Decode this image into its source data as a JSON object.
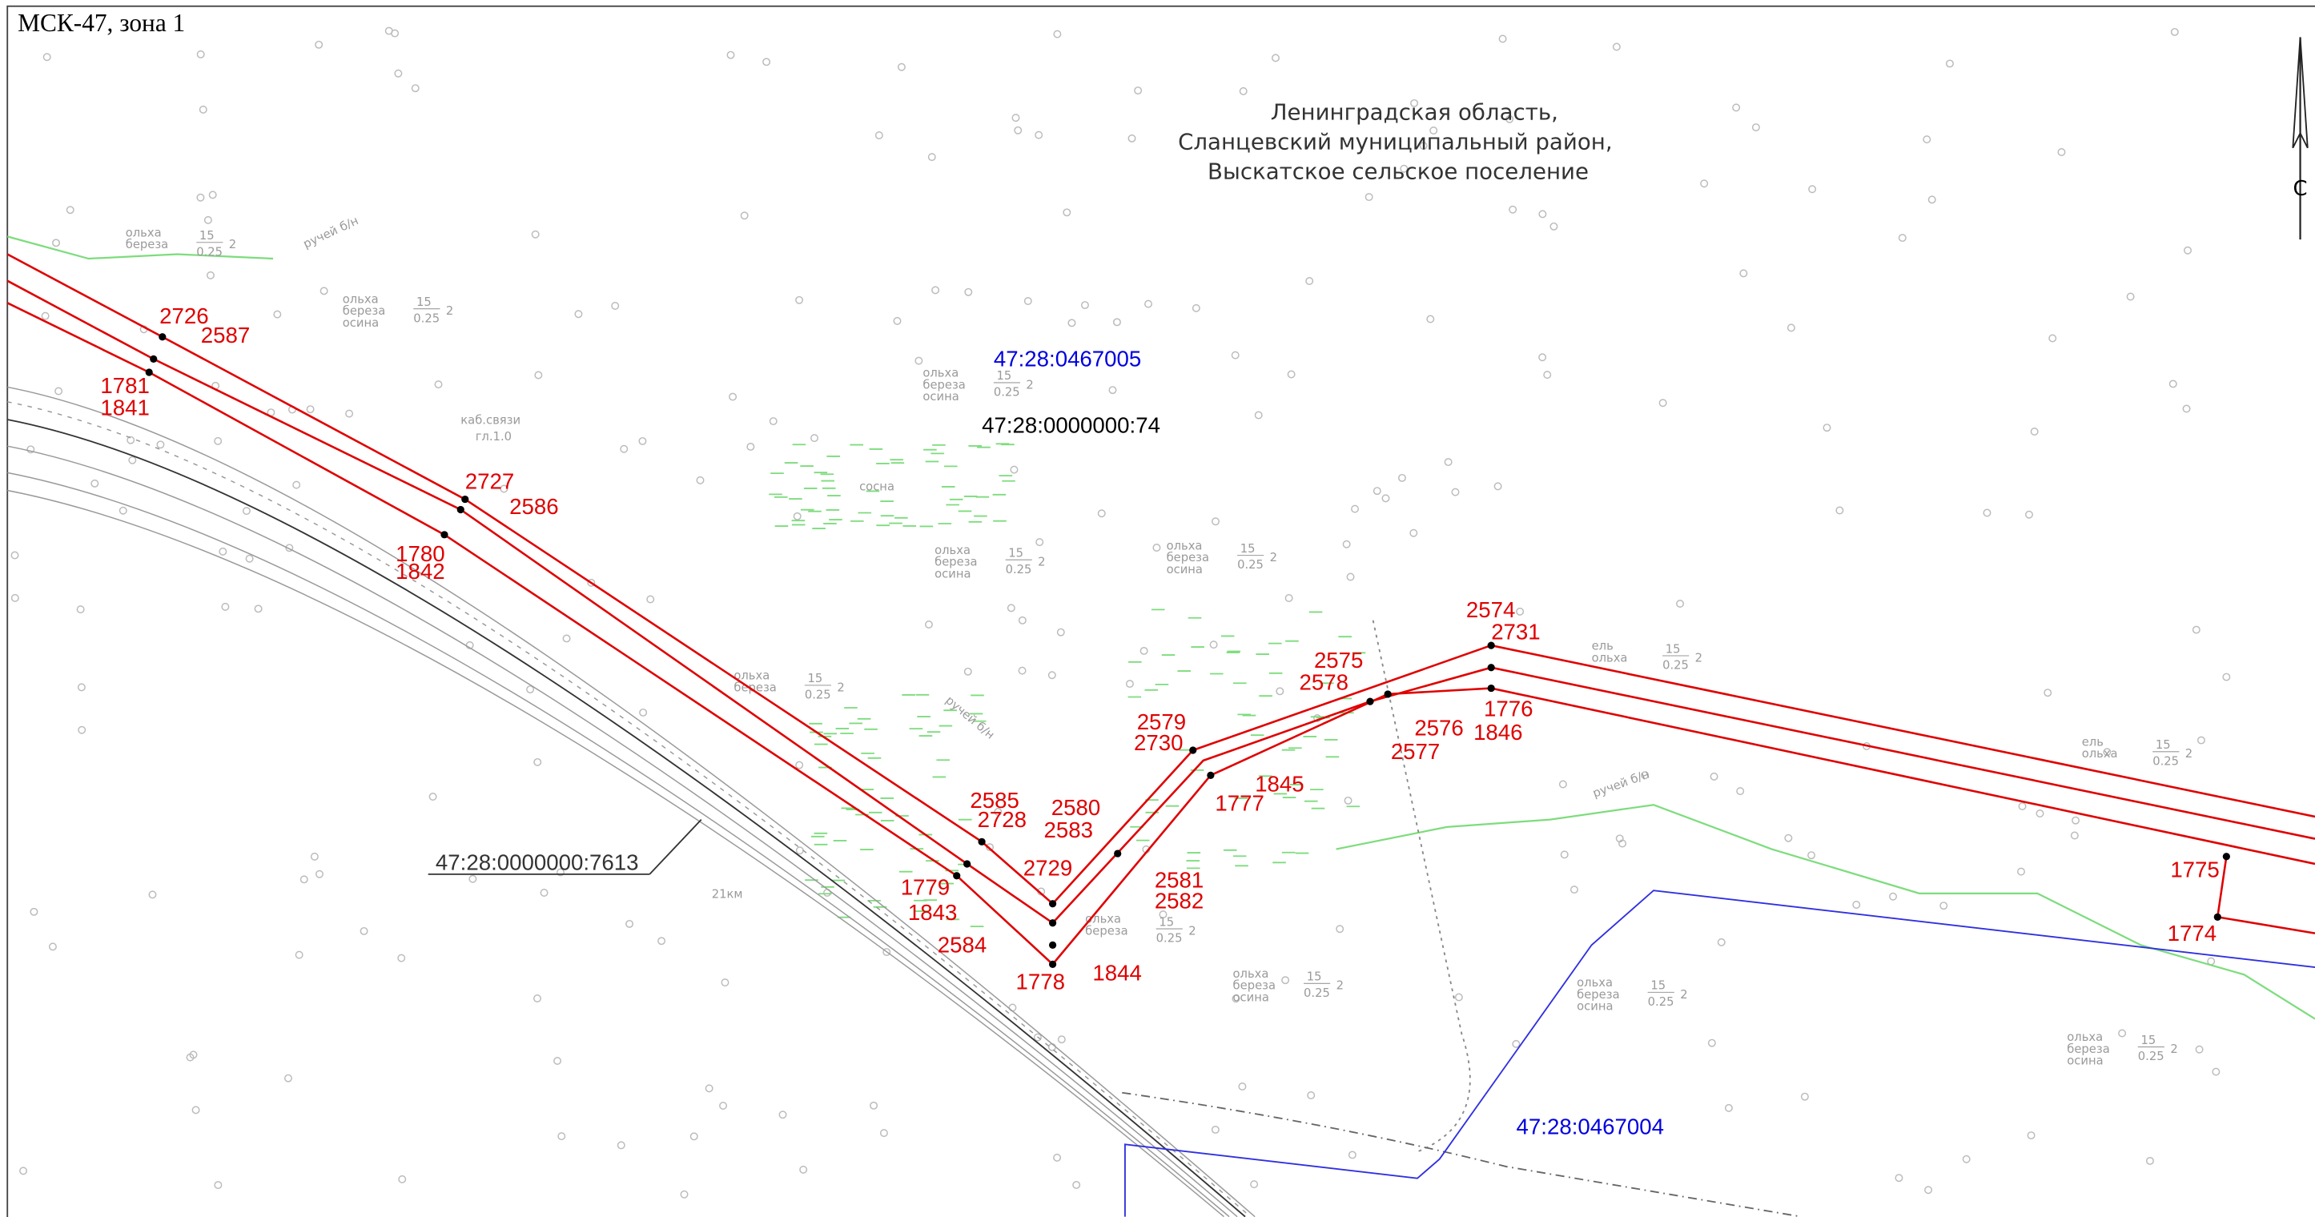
{
  "header": {
    "title": "МСК-47, зона 1"
  },
  "region": {
    "lines": [
      "Ленинградская область,",
      "Сланцевский муниципальный район,",
      "Выскатское сельское поселение"
    ]
  },
  "north": "С",
  "parcels": [
    "47:28:0467005",
    "47:28:0000000:74",
    "47:28:0000000:7613",
    "47:28:0467004"
  ],
  "points": [
    "2726",
    "2587",
    "1781",
    "1841",
    "2727",
    "2586",
    "1780",
    "1842",
    "2585",
    "2728",
    "1779",
    "1843",
    "2729",
    "2580",
    "2583",
    "2581",
    "2582",
    "2584",
    "1778",
    "1844",
    "2579",
    "2730",
    "1845",
    "1777",
    "2575",
    "2578",
    "2576",
    "2577",
    "1776",
    "1846",
    "2574",
    "2731",
    "1775",
    "1774"
  ],
  "small": {
    "alder": "ольха",
    "birch": "береза",
    "aspen": "осина",
    "pine": "сосна",
    "spruce": "ель",
    "h": "15",
    "n": "2",
    "d": "0.25",
    "stream": "ручей б/н",
    "cable": "каб.связи",
    "depth": "гл.1.0",
    "km": "21км"
  }
}
